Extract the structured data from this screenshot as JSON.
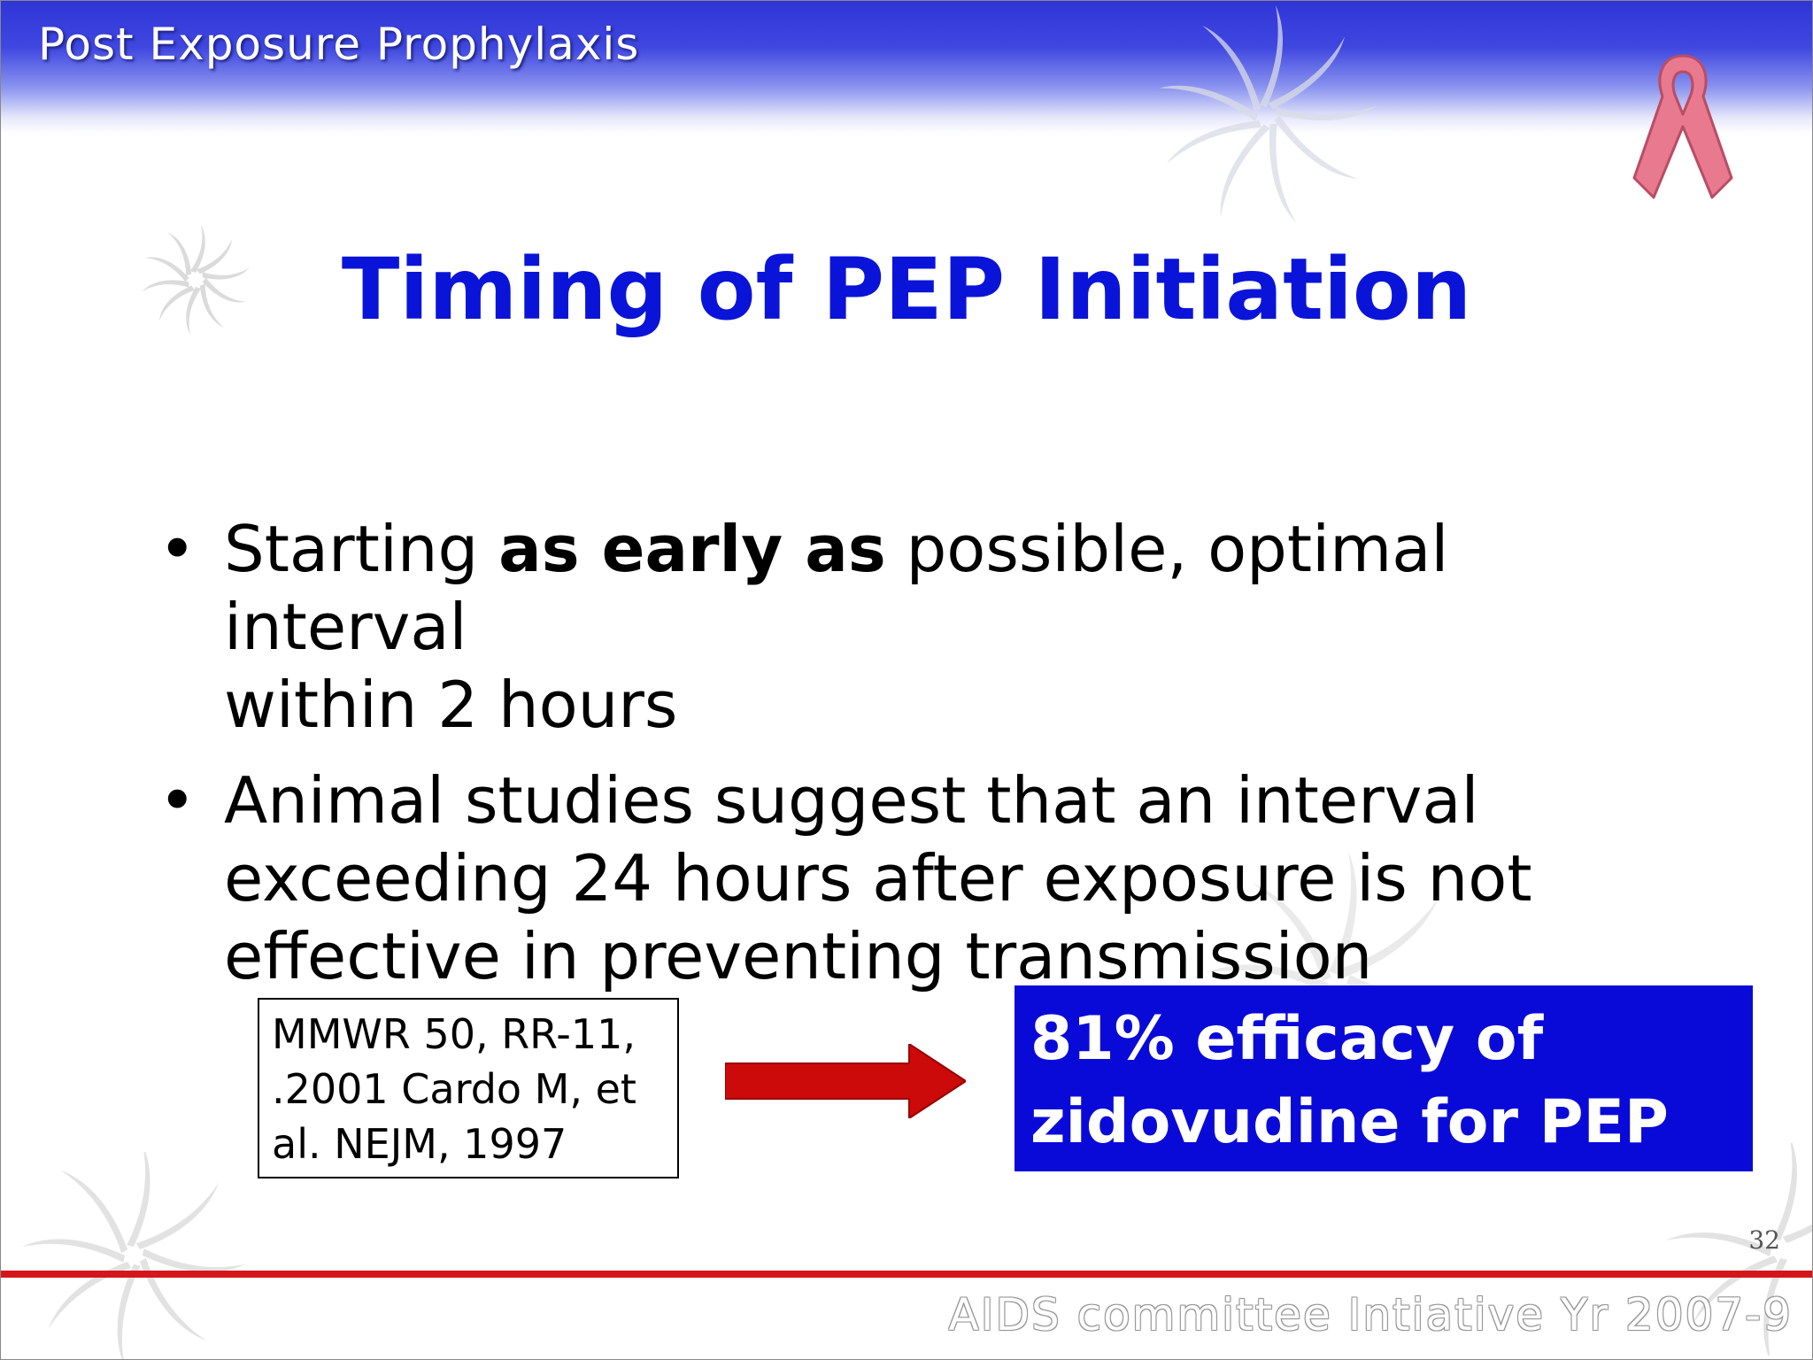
{
  "header": {
    "title": "Post Exposure Prophylaxis"
  },
  "slide": {
    "title": "Timing of PEP Initiation",
    "bullets": [
      {
        "before": "Starting ",
        "bold": "as early as",
        "after": " possible, optimal interval",
        "line2": "within 2 hours"
      },
      {
        "line1": "Animal studies suggest that an interval",
        "line2": "exceeding 24 hours after exposure is not",
        "line3": "effective in preventing transmission"
      }
    ],
    "bullet_symbol": "•",
    "citation": {
      "line1": "MMWR 50, RR-11,",
      "line2": ".2001 Cardo M, et",
      "line3": "al. NEJM, 1997"
    },
    "efficacy": {
      "line1": "81% efficacy of",
      "line2": "zidovudine for PEP"
    },
    "page_number": "32"
  },
  "footer": {
    "text": "AIDS committee Intiative Yr 2007-9"
  },
  "icons": {
    "ribbon": "awareness-ribbon-icon",
    "arrow": "right-arrow-icon",
    "pinwheel": "pinwheel-decoration"
  },
  "colors": {
    "header_blue": "#2f35d6",
    "title_blue": "#0a14d8",
    "efficacy_bg": "#0a0ad8",
    "arrow_red": "#cc0a0a",
    "footer_red": "#d6151b",
    "ribbon_pink": "#e8798e"
  }
}
